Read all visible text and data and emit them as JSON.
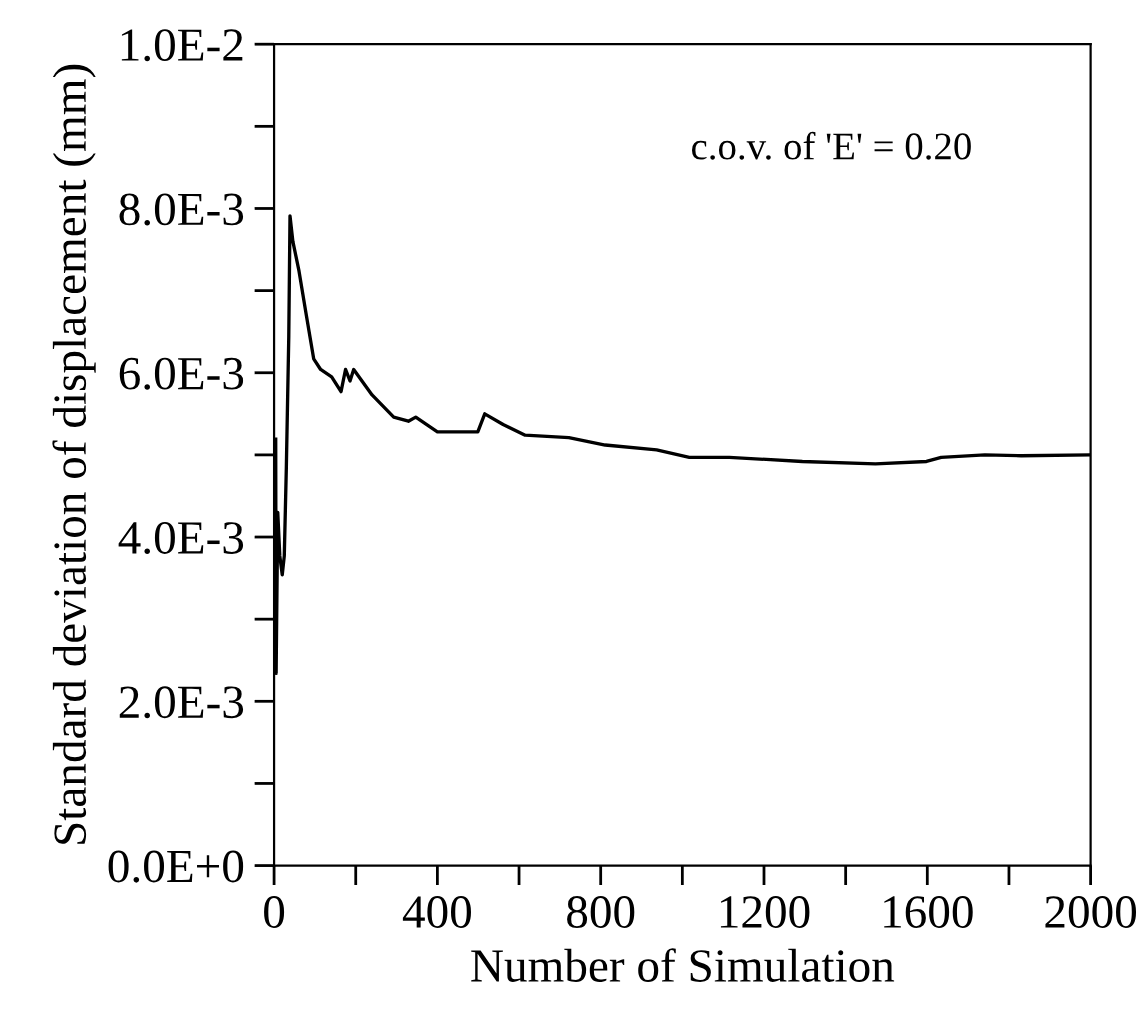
{
  "chart_data": {
    "type": "line",
    "xlabel": "Number of Simulation",
    "ylabel": "Standard deviation of displacement (mm)",
    "annotations": [
      "c.o.v. of 'E' = 0.20"
    ],
    "xlim": [
      0,
      2000
    ],
    "xticks": [
      0,
      {
        "value": 200,
        "label": null
      },
      400,
      {
        "value": 600,
        "label": null
      },
      800,
      {
        "value": 1000,
        "label": null
      },
      1200,
      {
        "value": 1400,
        "label": null
      },
      1600,
      {
        "value": 1800,
        "label": null
      },
      2000
    ],
    "ylim": [
      0,
      0.01
    ],
    "yticks": [
      {
        "value": 0,
        "label": "0.0E+0"
      },
      {
        "value": 0.001,
        "label": null
      },
      {
        "value": 0.002,
        "label": "2.0E-3"
      },
      {
        "value": 0.003,
        "label": null
      },
      {
        "value": 0.004,
        "label": "4.0E-3"
      },
      {
        "value": 0.005,
        "label": null
      },
      {
        "value": 0.006,
        "label": "6.0E-3"
      },
      {
        "value": 0.007,
        "label": null
      },
      {
        "value": 0.008,
        "label": "8.0E-3"
      },
      {
        "value": 0.009,
        "label": null
      },
      {
        "value": 0.01,
        "label": "1.0E-2"
      }
    ],
    "grid": false,
    "legend": false,
    "series": [
      {
        "color": "#000000",
        "x": [
          4,
          5,
          9,
          14,
          20,
          25,
          30,
          36,
          39,
          46,
          61,
          79,
          97,
          114,
          141,
          164,
          175,
          186,
          195,
          240,
          293,
          329,
          347,
          400,
          472,
          499,
          516,
          561,
          615,
          722,
          811,
          937,
          1017,
          1115,
          1294,
          1473,
          1598,
          1634,
          1741,
          1830,
          2000
        ],
        "values": [
          0.00519,
          0.00234,
          0.0043,
          0.00377,
          0.00354,
          0.00377,
          0.00484,
          0.00644,
          0.00791,
          0.0076,
          0.00724,
          0.0067,
          0.00617,
          0.00604,
          0.00595,
          0.00577,
          0.00604,
          0.0059,
          0.00604,
          0.00573,
          0.00546,
          0.00541,
          0.00546,
          0.00528,
          0.00528,
          0.00528,
          0.0055,
          0.00537,
          0.00524,
          0.00521,
          0.00512,
          0.00506,
          0.00497,
          0.00497,
          0.00492,
          0.00489,
          0.00492,
          0.00497,
          0.005,
          0.00499,
          0.005
        ]
      }
    ]
  }
}
